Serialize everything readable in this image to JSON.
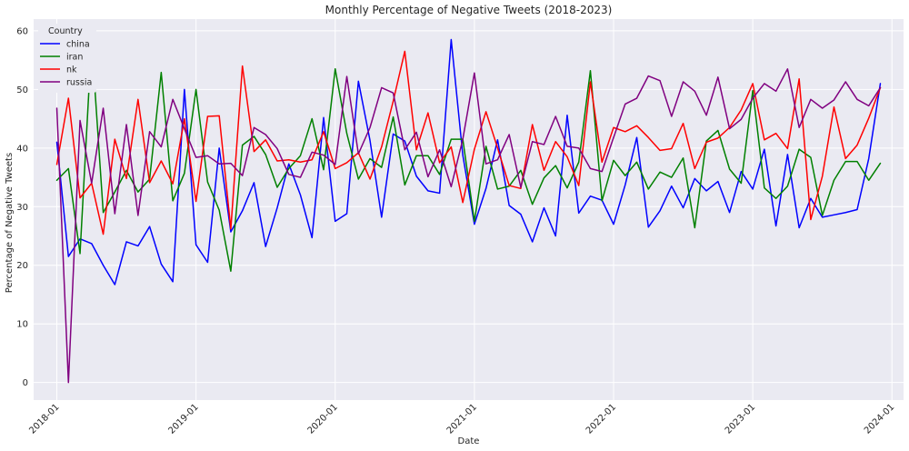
{
  "chart_data": {
    "type": "line",
    "title": "Monthly Percentage of Negative Tweets (2018-2023)",
    "xlabel": "Date",
    "ylabel": "Percentage of Negative Tweets",
    "x_ticks": [
      "2018-01",
      "2019-01",
      "2020-01",
      "2021-01",
      "2022-01",
      "2023-01",
      "2024-01"
    ],
    "y_ticks": [
      0,
      10,
      20,
      30,
      40,
      50,
      60
    ],
    "ylim": [
      -3,
      62
    ],
    "xlim": [
      "2017-11",
      "2024-02"
    ],
    "grid": true,
    "legend": {
      "title": "Country",
      "position": "top-left"
    },
    "x": [
      "2018-01",
      "2018-02",
      "2018-03",
      "2018-04",
      "2018-05",
      "2018-06",
      "2018-07",
      "2018-08",
      "2018-09",
      "2018-10",
      "2018-11",
      "2018-12",
      "2019-01",
      "2019-02",
      "2019-03",
      "2019-04",
      "2019-05",
      "2019-06",
      "2019-07",
      "2019-08",
      "2019-09",
      "2019-10",
      "2019-11",
      "2019-12",
      "2020-01",
      "2020-02",
      "2020-03",
      "2020-04",
      "2020-05",
      "2020-06",
      "2020-07",
      "2020-08",
      "2020-09",
      "2020-10",
      "2020-11",
      "2020-12",
      "2021-01",
      "2021-02",
      "2021-03",
      "2021-04",
      "2021-05",
      "2021-06",
      "2021-07",
      "2021-08",
      "2021-09",
      "2021-10",
      "2021-11",
      "2021-12",
      "2022-01",
      "2022-02",
      "2022-03",
      "2022-04",
      "2022-05",
      "2022-06",
      "2022-07",
      "2022-08",
      "2022-09",
      "2022-10",
      "2022-11",
      "2022-12",
      "2023-01",
      "2023-02",
      "2023-03",
      "2023-04",
      "2023-05",
      "2023-06",
      "2023-07",
      "2023-08",
      "2023-09",
      "2023-10",
      "2023-11",
      "2023-12"
    ],
    "series": [
      {
        "name": "china",
        "color": "#0000ff",
        "values": [
          41,
          21.5,
          24.5,
          23.7,
          20,
          16.7,
          24,
          23.3,
          26.6,
          20.2,
          17.2,
          50,
          23.5,
          20.5,
          40,
          25.7,
          29.3,
          34.1,
          23.2,
          29.8,
          37.3,
          32,
          24.7,
          45.2,
          27.5,
          28.8,
          51.4,
          41.3,
          28.2,
          42.4,
          41.2,
          35.2,
          32.7,
          32.3,
          58.5,
          38.8,
          27,
          33.1,
          41.4,
          30.2,
          28.7,
          24,
          29.8,
          25,
          45.6,
          28.9,
          31.8,
          31.1,
          27,
          33.7,
          41.8,
          26.5,
          29.3,
          33.5,
          29.8,
          34.8,
          32.7,
          34.3,
          29,
          36,
          33,
          39.8,
          26.7,
          38.9,
          26.4,
          31.4,
          28.2,
          28.6,
          29,
          29.5,
          38.2,
          51
        ]
      },
      {
        "name": "iran",
        "color": "#008000",
        "values": [
          34.5,
          36.5,
          22,
          58.4,
          29,
          32.5,
          36.2,
          32.5,
          34.7,
          52.9,
          31,
          35.7,
          50,
          34.2,
          29.4,
          19,
          40.5,
          42,
          38.9,
          33.3,
          36.5,
          38.7,
          45,
          36.3,
          53.5,
          42.5,
          34.7,
          38.2,
          36.7,
          45.3,
          33.7,
          38.7,
          38.7,
          35.5,
          41.5,
          41.5,
          27.5,
          40.3,
          33,
          33.5,
          36.2,
          30.4,
          34.9,
          37,
          33.2,
          37.6,
          53.2,
          31,
          37.9,
          35.3,
          37.6,
          33,
          35.9,
          35,
          38.3,
          26.4,
          41.2,
          43,
          36.4,
          34,
          49.8,
          33.2,
          31.4,
          33.5,
          39.8,
          38.4,
          28.5,
          34.5,
          37.7,
          37.7,
          34.5,
          37.4
        ]
      },
      {
        "name": "nk",
        "color": "#ff0000",
        "values": [
          37.2,
          48.5,
          31.5,
          34,
          25.3,
          41.5,
          34.8,
          48.3,
          34.1,
          37.8,
          33.9,
          45,
          30.9,
          45.4,
          45.5,
          26.2,
          54,
          39.4,
          41.4,
          37.8,
          38,
          37.6,
          38,
          42.8,
          36.5,
          37.5,
          39.2,
          34.7,
          40.2,
          48,
          56.5,
          39.7,
          46,
          37.5,
          40.2,
          30.7,
          39.8,
          46.2,
          40,
          33.6,
          33.1,
          44,
          36.2,
          41.1,
          38.5,
          33.6,
          51.3,
          37.6,
          43.5,
          42.8,
          43.8,
          41.8,
          39.6,
          39.9,
          44.2,
          36.5,
          41,
          41.7,
          43.5,
          46.5,
          51,
          41.4,
          42.5,
          39.9,
          51.8,
          27.8,
          35.2,
          47,
          38.2,
          40.5,
          45.1,
          50.3
        ]
      },
      {
        "name": "russia",
        "color": "#800080",
        "values": [
          46.8,
          0,
          44.7,
          34,
          46.8,
          28.8,
          44,
          28.5,
          42.8,
          40.2,
          48.3,
          43.3,
          38.4,
          38.7,
          37.3,
          37.4,
          35.3,
          43.5,
          42.3,
          39.9,
          35.5,
          35,
          39.3,
          38.8,
          37.2,
          52.2,
          39,
          43.5,
          50.3,
          49.4,
          39.7,
          42.7,
          35.1,
          39.7,
          33.4,
          41.5,
          52.8,
          37.3,
          38,
          42.3,
          33.3,
          41.1,
          40.6,
          45.4,
          40.3,
          40,
          36.5,
          36,
          41.8,
          47.5,
          48.5,
          52.3,
          51.5,
          45.4,
          51.3,
          49.7,
          45.6,
          52.1,
          43.3,
          44.9,
          48.5,
          51,
          49.7,
          53.5,
          43.5,
          48.3,
          46.8,
          48.2,
          51.3,
          48.3,
          47.2,
          50.3
        ]
      }
    ]
  }
}
